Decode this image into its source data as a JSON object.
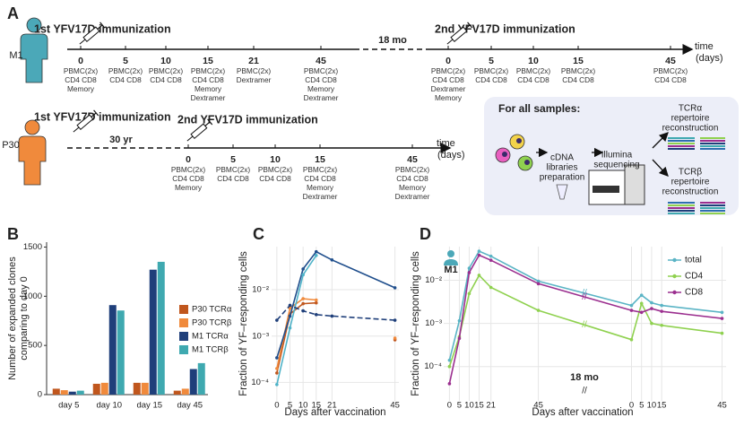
{
  "panel_a": {
    "label": "A",
    "subjects": [
      {
        "name": "M1",
        "first_immunization": "1st YFV17D immunization",
        "second_immunization": "2nd YFV17D immunization",
        "interval": "18 mo",
        "axis_label": [
          "time",
          "(days)"
        ],
        "first_timepoints": [
          {
            "day": 0,
            "samples": [
              "PBMC(2x)",
              "CD4 CD8",
              "Memory"
            ]
          },
          {
            "day": 5,
            "samples": [
              "PBMC(2x)",
              "CD4 CD8"
            ]
          },
          {
            "day": 10,
            "samples": [
              "PBMC(2x)",
              "CD4 CD8"
            ]
          },
          {
            "day": 15,
            "samples": [
              "PBMC(2x)",
              "CD4 CD8",
              "Memory",
              "Dextramer"
            ]
          },
          {
            "day": 21,
            "samples": [
              "PBMC(2x)",
              "Dextramer"
            ]
          },
          {
            "day": 45,
            "samples": [
              "PBMC(2x)",
              "CD4 CD8",
              "Memory",
              "Dextramer"
            ]
          }
        ],
        "second_timepoints": [
          {
            "day": 0,
            "samples": [
              "PBMC(2x)",
              "CD4 CD8",
              "Dextramer",
              "Memory"
            ]
          },
          {
            "day": 5,
            "samples": [
              "PBMC(2x)",
              "CD4 CD8"
            ]
          },
          {
            "day": 10,
            "samples": [
              "PBMC(2x)",
              "CD4 CD8"
            ]
          },
          {
            "day": 15,
            "samples": [
              "PBMC(2x)",
              "CD4 CD8"
            ]
          },
          {
            "day": 45,
            "samples": [
              "PBMC(2x)",
              "CD4 CD8"
            ]
          }
        ]
      },
      {
        "name": "P30",
        "first_immunization": "1st YFV17D immunization",
        "second_immunization": "2nd YFV17D immunization",
        "interval": "30 yr",
        "axis_label": [
          "time",
          "(days)"
        ],
        "second_timepoints": [
          {
            "day": 0,
            "samples": [
              "PBMC(2x)",
              "CD4 CD8",
              "Memory"
            ]
          },
          {
            "day": 5,
            "samples": [
              "PBMC(2x)",
              "CD4 CD8"
            ]
          },
          {
            "day": 10,
            "samples": [
              "PBMC(2x)",
              "CD4 CD8"
            ]
          },
          {
            "day": 15,
            "samples": [
              "PBMC(2x)",
              "CD4 CD8",
              "Memory",
              "Dextramer"
            ]
          },
          {
            "day": 45,
            "samples": [
              "PBMC(2x)",
              "CD4 CD8",
              "Memory",
              "Dextramer"
            ]
          }
        ]
      }
    ],
    "workflow": {
      "title": "For all samples:",
      "steps": [
        [
          "cDNA",
          "libraries",
          "preparation"
        ],
        [
          "Illumina",
          "sequencing"
        ],
        [
          "TCRα",
          "repertoire",
          "reconstruction"
        ],
        [
          "TCRβ",
          "repertoire",
          "reconstruction"
        ]
      ]
    }
  },
  "chart_data": [
    {
      "type": "bar",
      "label": "B",
      "ylabel": [
        "Number of expanded clones",
        "comparing to day 0"
      ],
      "categories": [
        "day 5",
        "day 10",
        "day 15",
        "day 45"
      ],
      "series": [
        {
          "name": "P30 TCRα",
          "color": "#c0561d",
          "values": [
            60,
            110,
            120,
            40
          ]
        },
        {
          "name": "P30 TCRβ",
          "color": "#f08a3c",
          "values": [
            45,
            120,
            120,
            60
          ]
        },
        {
          "name": "M1 TCRα",
          "color": "#1f3f7a",
          "values": [
            30,
            910,
            1270,
            260
          ]
        },
        {
          "name": "M1 TCRβ",
          "color": "#3fa9b0",
          "values": [
            40,
            855,
            1350,
            320
          ]
        }
      ],
      "ylim": [
        0,
        1550
      ],
      "yticks": [
        0,
        500,
        1000,
        1500
      ],
      "legend": "right"
    },
    {
      "type": "line",
      "label": "C",
      "xlabel": "Days after vaccination",
      "ylabel": "Fraction of YF–responding cells",
      "x": [
        0,
        5,
        10,
        15,
        21,
        45
      ],
      "xlim": [
        -2,
        46.5
      ],
      "xticks": [
        0,
        5,
        10,
        15,
        21,
        45
      ],
      "ylim": [
        4e-05,
        0.085
      ],
      "yticks": [
        {
          "value": 0.0001,
          "label": "10⁻⁴"
        },
        {
          "value": 0.001,
          "label": "10⁻³"
        },
        {
          "value": 0.01,
          "label": "10⁻²"
        }
      ],
      "log_y": true,
      "grid": true,
      "series": [
        {
          "color": "#c0561d",
          "values": [
            0.00016,
            0.003,
            0.005,
            0.0052,
            null,
            0.00083
          ]
        },
        {
          "color": "#f08a3c",
          "values": [
            0.0002,
            0.004,
            0.0064,
            0.006,
            null,
            0.0009
          ]
        },
        {
          "color": "#1f4e8c",
          "values": [
            0.00034,
            0.0027,
            0.028,
            0.066,
            0.044,
            0.011
          ]
        },
        {
          "color": "#4fb3c8",
          "values": [
            9e-05,
            0.0015,
            0.021,
            0.055,
            null,
            null
          ]
        },
        {
          "color": "#1f3f7a",
          "dashed": true,
          "values": [
            0.0022,
            0.0046,
            0.0035,
            0.0029,
            0.0027,
            0.0022
          ]
        }
      ]
    },
    {
      "type": "broken_line",
      "label": "D",
      "subject": "M1",
      "annotation": "18 mo",
      "xlabel": "Days after vaccination",
      "ylabel": "Fraction of YF–responding cells",
      "segments": [
        {
          "x": [
            0,
            5,
            10,
            15,
            21,
            45
          ],
          "xlim": [
            -2,
            47
          ],
          "xticks": [
            0,
            5,
            10,
            15,
            21,
            45
          ]
        },
        {
          "x": [
            0,
            5,
            10,
            15,
            45
          ],
          "xlim": [
            -2,
            47
          ],
          "xticks": [
            0,
            5,
            10,
            15,
            45
          ]
        }
      ],
      "ylim": [
        1.6e-05,
        0.06
      ],
      "yticks": [
        {
          "value": 0.0001,
          "label": "10⁻⁴"
        },
        {
          "value": 0.001,
          "label": "10⁻³"
        },
        {
          "value": 0.01,
          "label": "10⁻²"
        }
      ],
      "log_y": true,
      "grid": true,
      "legend": "upper right",
      "series": [
        {
          "name": "total",
          "color": "#5ab4c5",
          "values": [
            [
              0.00014,
              0.00115,
              0.019,
              0.047,
              0.036,
              0.0095
            ],
            [
              0.0026,
              0.0045,
              0.003,
              0.0026,
              0.0018
            ]
          ]
        },
        {
          "name": "CD4",
          "color": "#8fd14f",
          "values": [
            [
              0.0001,
              0.00049,
              0.0049,
              0.013,
              0.0068,
              0.002
            ],
            [
              0.00042,
              0.0029,
              0.001,
              0.0009,
              0.00059
            ]
          ]
        },
        {
          "name": "CD8",
          "color": "#9b2f8f",
          "values": [
            [
              4e-05,
              0.00045,
              0.015,
              0.038,
              0.029,
              0.0083
            ],
            [
              0.002,
              0.0018,
              0.0022,
              0.0019,
              0.0013
            ]
          ]
        }
      ]
    }
  ]
}
